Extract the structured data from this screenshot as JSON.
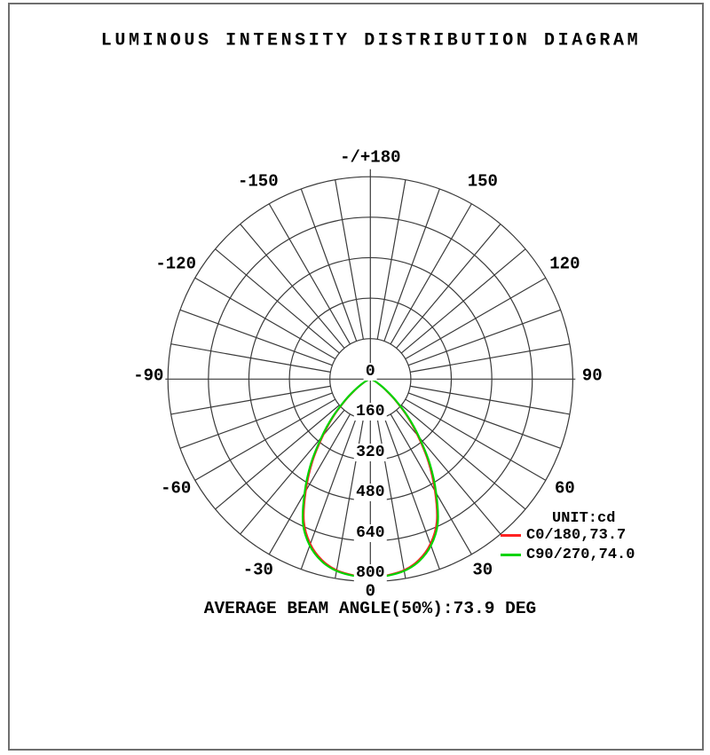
{
  "title": "LUMINOUS INTENSITY DISTRIBUTION DIAGRAM",
  "annotation": "AVERAGE BEAM ANGLE(50%):73.9 DEG",
  "legend": {
    "unit_label": "UNIT:cd",
    "entries": [
      {
        "label": "C0/180,73.7",
        "color": "#ff2222"
      },
      {
        "label": "C90/270,74.0",
        "color": "#00d300"
      }
    ]
  },
  "colors": {
    "grid": "#3a3a3a",
    "border": "#6f6f6f",
    "c0_180": "#ff2222",
    "c90_270": "#00d300",
    "text": "#000000"
  },
  "chart_data": {
    "type": "line",
    "subtype": "polar-luminous-intensity",
    "title": "LUMINOUS INTENSITY DISTRIBUTION DIAGRAM",
    "unit": "cd",
    "r_max": 800,
    "ring_values": [
      "160",
      "320",
      "480",
      "640",
      "800"
    ],
    "center_label": "0",
    "angle_step_deg": 10,
    "angle_labels": [
      {
        "text": "-/+180",
        "angle": 180
      },
      {
        "text": "150",
        "angle": 150
      },
      {
        "text": "120",
        "angle": 120
      },
      {
        "text": "90",
        "angle": 90
      },
      {
        "text": "60",
        "angle": 60
      },
      {
        "text": "30",
        "angle": 30
      },
      {
        "text": "0",
        "angle": 0
      },
      {
        "text": "-30",
        "angle": -30
      },
      {
        "text": "-60",
        "angle": -60
      },
      {
        "text": "-90",
        "angle": -90
      },
      {
        "text": "-120",
        "angle": -120
      },
      {
        "text": "-150",
        "angle": -150
      }
    ],
    "average_beam_angle_50pct_deg": 73.9,
    "series": [
      {
        "name": "C0/180",
        "beam_angle_deg": 73.7,
        "color": "#ff2222",
        "symmetric": true,
        "angles_deg_from_nadir": [
          0,
          5,
          10,
          15,
          20,
          25,
          30,
          35,
          40,
          45,
          50,
          55,
          60,
          65,
          70,
          75,
          80,
          85,
          90
        ],
        "intensity_cd": [
          785,
          778,
          767,
          740,
          693,
          621,
          510,
          400,
          291,
          202,
          124,
          70,
          37,
          20,
          10,
          5,
          2,
          1,
          0
        ]
      },
      {
        "name": "C90/270",
        "beam_angle_deg": 74.0,
        "color": "#00d300",
        "symmetric": true,
        "angles_deg_from_nadir": [
          0,
          5,
          10,
          15,
          20,
          25,
          30,
          35,
          40,
          45,
          50,
          55,
          60,
          65,
          70,
          75,
          80,
          85,
          90
        ],
        "intensity_cd": [
          785,
          780,
          770,
          745,
          700,
          630,
          520,
          410,
          300,
          210,
          130,
          75,
          40,
          22,
          12,
          6,
          3,
          1,
          0
        ]
      }
    ]
  }
}
